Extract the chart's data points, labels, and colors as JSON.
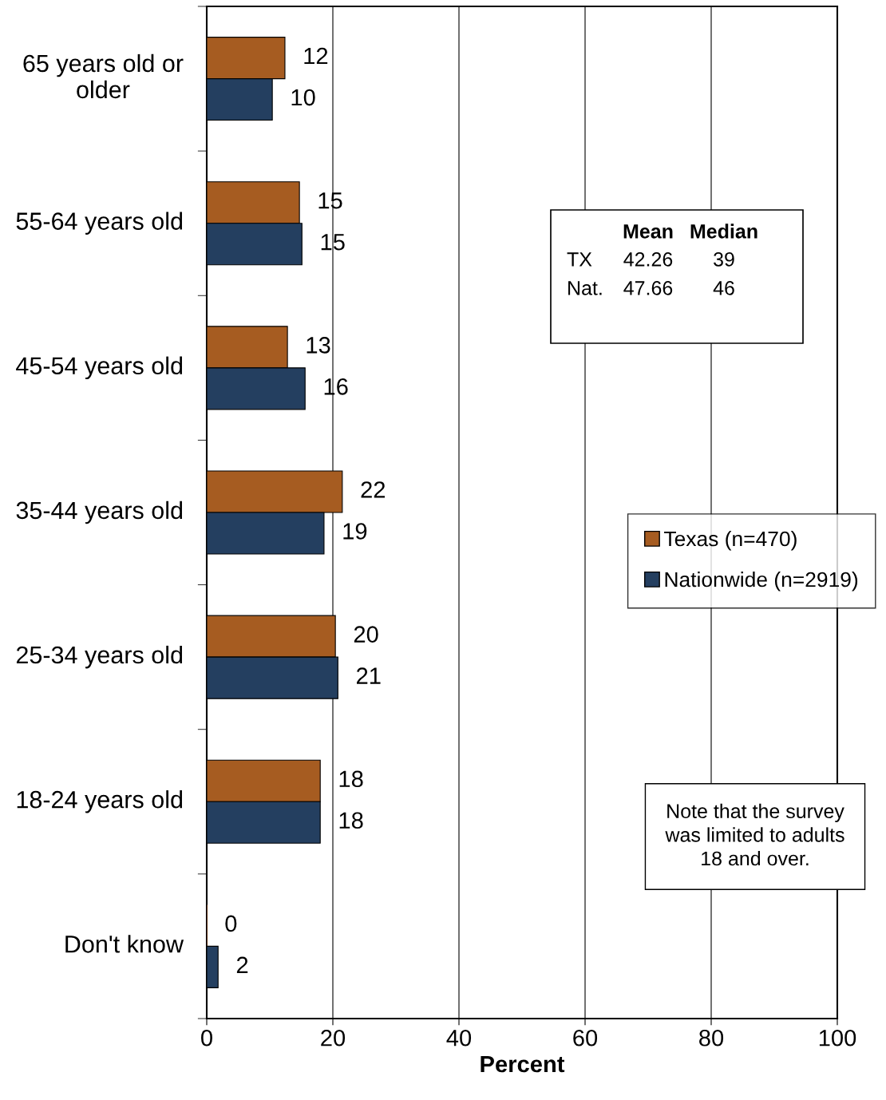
{
  "chart_data": {
    "type": "bar",
    "orientation": "horizontal",
    "categories": [
      "65 years old or older",
      "55-64 years old",
      "45-54 years old",
      "35-44 years old",
      "25-34 years old",
      "18-24 years old",
      "Don't know"
    ],
    "series": [
      {
        "name": "Texas (n=470)",
        "color": "#a65c21",
        "values": [
          12.4,
          14.7,
          12.8,
          21.5,
          20.4,
          18.0,
          0
        ],
        "value_labels": [
          "12",
          "15",
          "13",
          "22",
          "20",
          "18",
          "0"
        ]
      },
      {
        "name": "Nationwide (n=2919)",
        "color": "#243f60",
        "values": [
          10.4,
          15.1,
          15.6,
          18.6,
          20.8,
          18.0,
          1.8
        ],
        "value_labels": [
          "10",
          "15",
          "16",
          "19",
          "21",
          "18",
          "2"
        ]
      }
    ],
    "xlabel": "Percent",
    "xlim": [
      0,
      100
    ],
    "xticks": [
      0,
      20,
      40,
      60,
      80,
      100
    ],
    "grid": "x",
    "legend": "center right",
    "annotations": [
      "Mean",
      "Median",
      "TX",
      "42.26",
      "39",
      "Nat.",
      "47.66",
      "46",
      "Note that the survey\nwas limited to adults\n18 and over."
    ]
  }
}
